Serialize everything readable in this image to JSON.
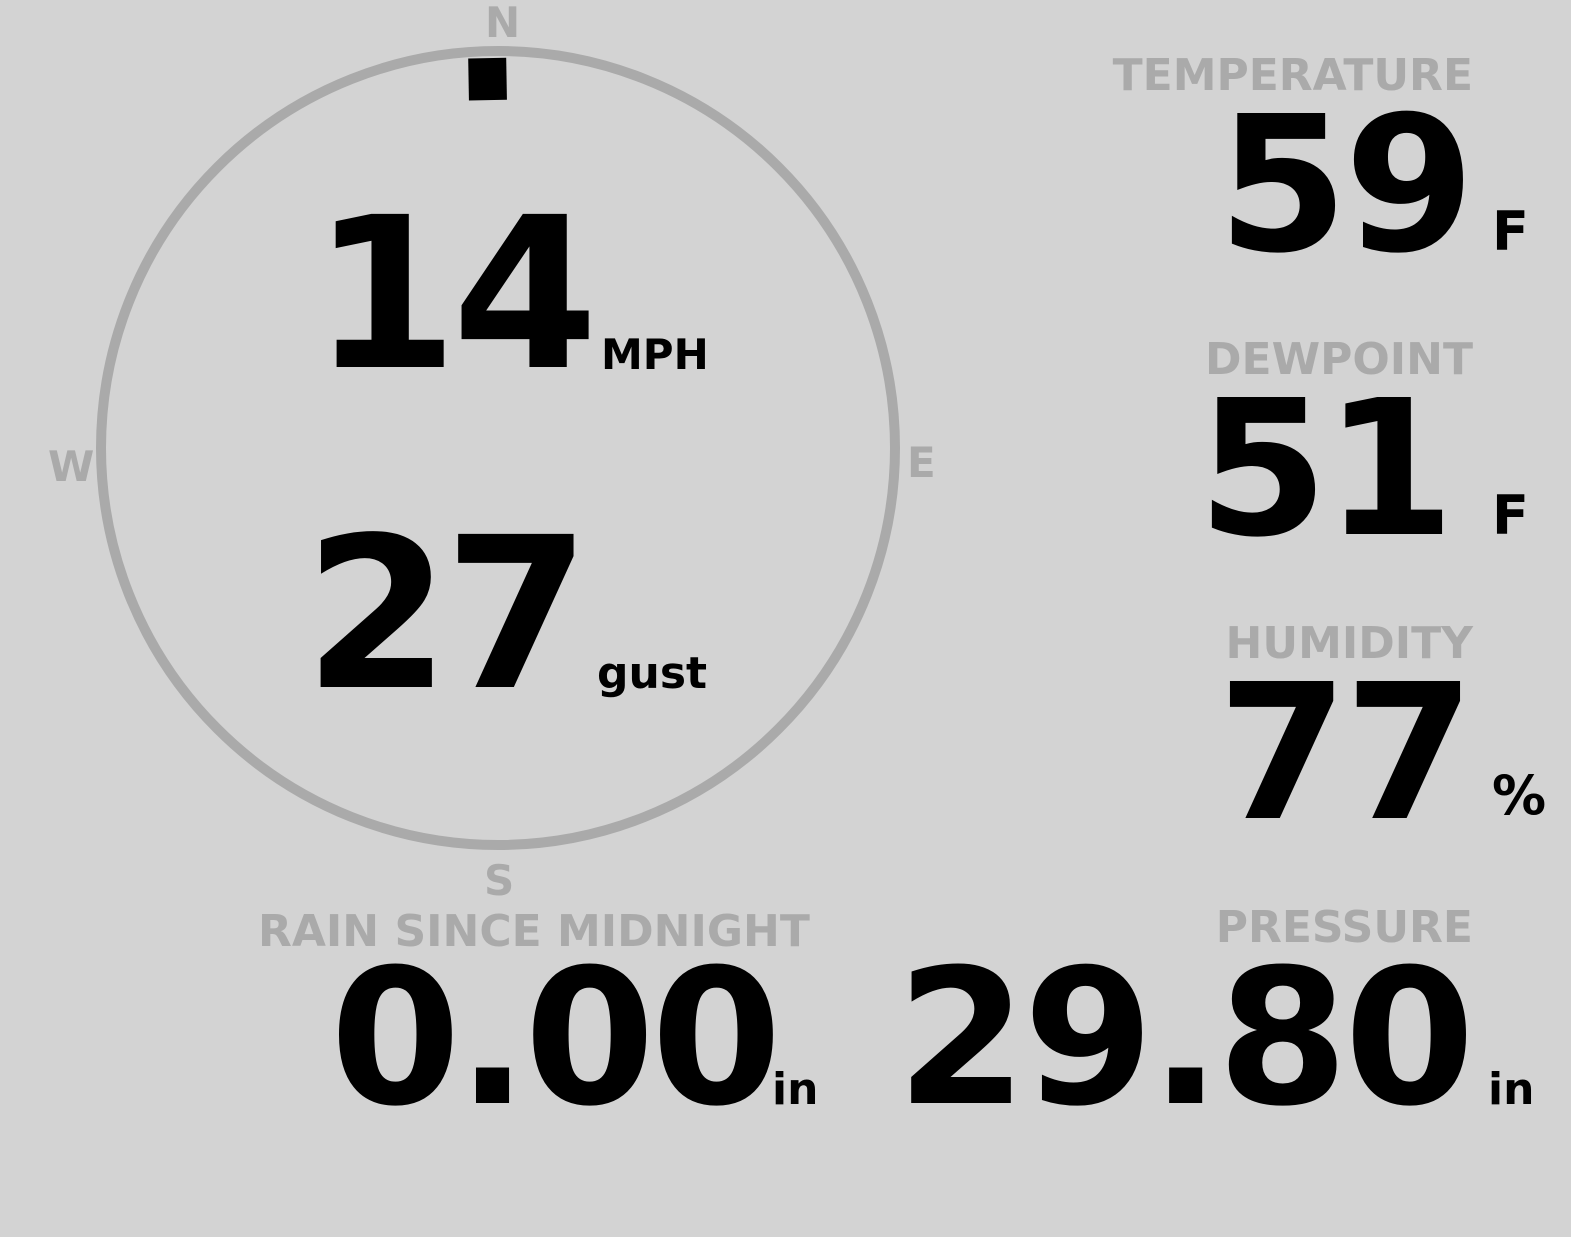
{
  "compass": {
    "north": "N",
    "east": "E",
    "south": "S",
    "west": "W",
    "wind_direction_deg": 359,
    "ring_color": "#aaaaaa"
  },
  "wind": {
    "speed": "14",
    "speed_unit": "MPH",
    "gust": "27",
    "gust_unit": "gust"
  },
  "temperature": {
    "label": "TEMPERATURE",
    "value": "59",
    "unit": "F"
  },
  "dewpoint": {
    "label": "DEWPOINT",
    "value": "51",
    "unit": "F"
  },
  "humidity": {
    "label": "HUMIDITY",
    "value": "77",
    "unit": "%"
  },
  "rain": {
    "label": "RAIN SINCE MIDNIGHT",
    "value": "0.00",
    "unit": "in"
  },
  "pressure": {
    "label": "PRESSURE",
    "value": "29.80",
    "unit": "in"
  }
}
